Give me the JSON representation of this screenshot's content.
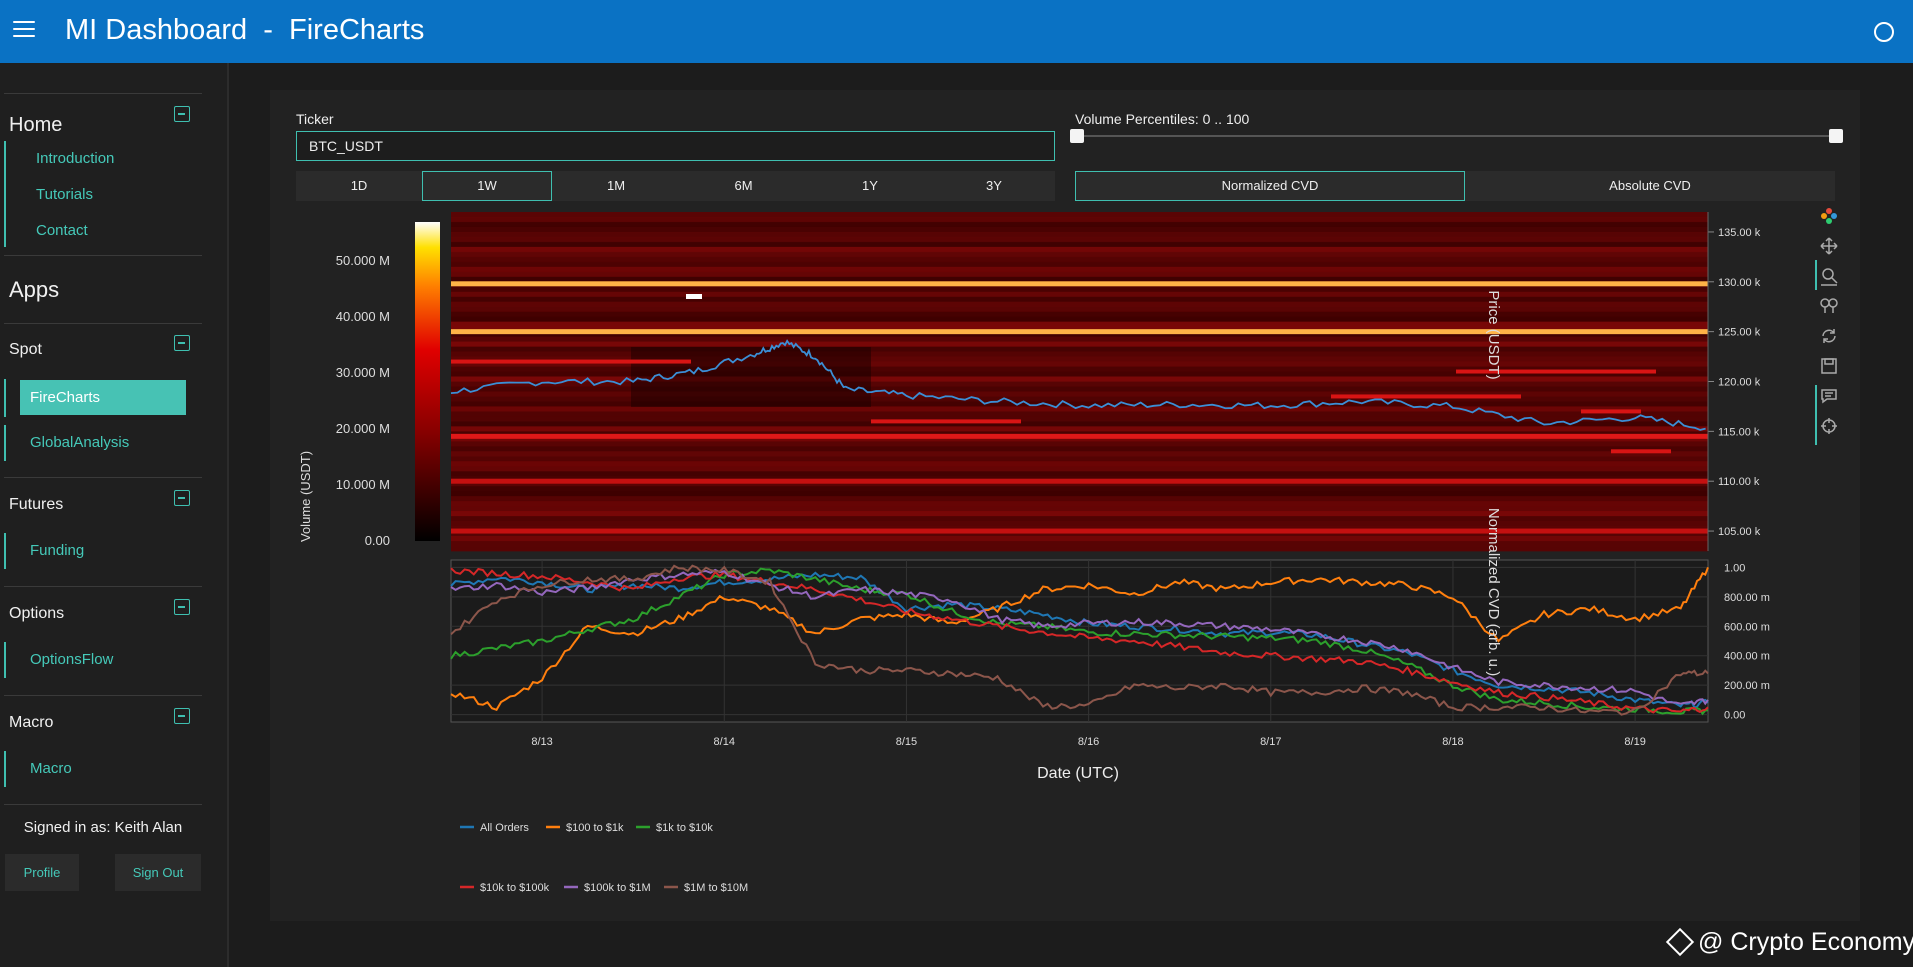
{
  "header": {
    "title": "MI Dashboard  -  FireCharts",
    "menu_icon": "hamburger-menu-icon",
    "status_icon": "circle-status-icon",
    "background": "#0a72c4"
  },
  "sidebar": {
    "home": {
      "title": "Home",
      "items": [
        "Introduction",
        "Tutorials",
        "Contact"
      ]
    },
    "apps_title": "Apps",
    "spot": {
      "title": "Spot",
      "items": [
        "FireCharts",
        "GlobalAnalysis"
      ],
      "active": "FireCharts"
    },
    "futures": {
      "title": "Futures",
      "items": [
        "Funding"
      ]
    },
    "options": {
      "title": "Options",
      "items": [
        "OptionsFlow"
      ]
    },
    "macro": {
      "title": "Macro",
      "items": [
        "Macro"
      ]
    },
    "signed_in": "Signed in as: Keith Alan",
    "profile_label": "Profile",
    "signout_label": "Sign Out",
    "accent": "#45c9b9"
  },
  "controls": {
    "ticker_label": "Ticker",
    "ticker_value": "BTC_USDT",
    "volume_label": "Volume Percentiles: 0 .. 100",
    "volume_range": [
      0,
      100
    ],
    "ranges": [
      "1D",
      "1W",
      "1M",
      "6M",
      "1Y",
      "3Y"
    ],
    "active_range": "1W",
    "cvd_modes": [
      "Normalized CVD",
      "Absolute CVD"
    ],
    "active_cvd_mode": "Normalized CVD"
  },
  "chart_data": [
    {
      "type": "heatmap",
      "colorscale": "hot",
      "colorbar_label": "Volume (USDT)",
      "colorbar_ticks": [
        "0.00",
        "10.000 M",
        "20.000 M",
        "30.000 M",
        "40.000 M",
        "50.000 M"
      ],
      "colorbar_range": [
        0,
        57000000
      ],
      "ylabel": "Price (USDT)",
      "ylim": [
        103000,
        137000
      ],
      "y_ticks": [
        "105.00 k",
        "110.00 k",
        "115.00 k",
        "120.00 k",
        "125.00 k",
        "130.00 k",
        "135.00 k"
      ],
      "x_range": [
        "2025-08-12T12:00",
        "2025-08-19T10:00"
      ],
      "bright_bands": [
        {
          "price": 129800,
          "volume": 45000000
        },
        {
          "price": 125000,
          "volume": 48000000
        },
        {
          "price": 114500,
          "volume": 26000000
        },
        {
          "price": 110000,
          "volume": 20000000
        },
        {
          "price": 105000,
          "volume": 15000000
        }
      ],
      "price_series": {
        "x": [
          "8/12 12:00",
          "8/13 00:00",
          "8/13 12:00",
          "8/13 20:00",
          "8/14 04:00",
          "8/14 08:00",
          "8/14 12:00",
          "8/14 16:00",
          "8/15 00:00",
          "8/15 12:00",
          "8/16 00:00",
          "8/16 12:00",
          "8/17 00:00",
          "8/17 12:00",
          "8/18 00:00",
          "8/18 12:00",
          "8/19 00:00",
          "8/19 10:00"
        ],
        "y": [
          119000,
          120000,
          120000,
          121000,
          122800,
          124000,
          122500,
          119200,
          118600,
          118000,
          117600,
          117700,
          117600,
          118000,
          117500,
          115800,
          116400,
          115300
        ]
      }
    },
    {
      "type": "line",
      "xlabel": "Date (UTC)",
      "ylabel": "Normalized CVD (arb. u.)",
      "ylim": [
        -0.05,
        1.05
      ],
      "y_ticks": [
        "0.00",
        "200.00 m",
        "400.00 m",
        "600.00 m",
        "800.00 m",
        "1.00"
      ],
      "x_ticks": [
        "8/13",
        "8/14",
        "8/15",
        "8/16",
        "8/17",
        "8/18",
        "8/19"
      ],
      "legend_position": "bottom",
      "x": [
        0,
        0.25,
        0.5,
        0.75,
        1,
        1.25,
        1.5,
        1.75,
        2,
        2.25,
        2.5,
        2.75,
        3,
        3.25,
        3.5,
        3.75,
        4,
        4.25,
        4.5,
        4.75,
        5,
        5.25,
        5.5,
        5.75,
        6,
        6.25,
        6.5,
        6.75,
        6.9
      ],
      "series": [
        {
          "name": "All Orders",
          "color": "#1f77b4",
          "values": [
            0.88,
            0.93,
            0.9,
            0.85,
            0.88,
            0.86,
            0.9,
            0.92,
            0.95,
            0.93,
            0.72,
            0.75,
            0.72,
            0.68,
            0.62,
            0.6,
            0.58,
            0.55,
            0.56,
            0.54,
            0.48,
            0.42,
            0.3,
            0.2,
            0.18,
            0.15,
            0.1,
            0.06,
            0.08
          ]
        },
        {
          "name": "$100 to $1k",
          "color": "#ff7f0e",
          "values": [
            0.15,
            0.05,
            0.25,
            0.6,
            0.55,
            0.65,
            0.8,
            0.72,
            0.55,
            0.65,
            0.68,
            0.62,
            0.72,
            0.85,
            0.88,
            0.82,
            0.9,
            0.85,
            0.9,
            0.92,
            0.9,
            0.88,
            0.8,
            0.5,
            0.68,
            0.72,
            0.65,
            0.72,
            1.0
          ]
        },
        {
          "name": "$1k to $10k",
          "color": "#2ca02c",
          "values": [
            0.4,
            0.45,
            0.5,
            0.58,
            0.65,
            0.8,
            0.95,
            0.98,
            0.92,
            0.85,
            0.82,
            0.7,
            0.62,
            0.6,
            0.56,
            0.55,
            0.54,
            0.53,
            0.52,
            0.5,
            0.44,
            0.34,
            0.2,
            0.1,
            0.08,
            0.05,
            0.04,
            0.02,
            0.03
          ]
        },
        {
          "name": "$10k to $100k",
          "color": "#d62728",
          "values": [
            0.98,
            0.96,
            0.94,
            0.9,
            0.85,
            0.93,
            0.95,
            0.9,
            0.85,
            0.78,
            0.7,
            0.65,
            0.6,
            0.56,
            0.52,
            0.5,
            0.46,
            0.42,
            0.4,
            0.38,
            0.36,
            0.3,
            0.22,
            0.15,
            0.12,
            0.08,
            0.04,
            0.02,
            0.05
          ]
        },
        {
          "name": "$100k to $1M",
          "color": "#9467bd",
          "values": [
            0.85,
            0.88,
            0.83,
            0.86,
            0.92,
            0.95,
            0.97,
            0.88,
            0.8,
            0.85,
            0.82,
            0.78,
            0.65,
            0.6,
            0.62,
            0.63,
            0.62,
            0.6,
            0.58,
            0.54,
            0.5,
            0.44,
            0.32,
            0.22,
            0.2,
            0.18,
            0.16,
            0.06,
            0.1
          ]
        },
        {
          "name": "$1M to $10M",
          "color": "#8c564b",
          "values": [
            0.55,
            0.78,
            0.88,
            0.92,
            0.92,
            1.0,
            0.98,
            0.9,
            0.35,
            0.3,
            0.3,
            0.28,
            0.25,
            0.06,
            0.06,
            0.2,
            0.18,
            0.2,
            0.15,
            0.15,
            0.18,
            0.15,
            0.05,
            0.05,
            0.05,
            0.02,
            0.02,
            0.28,
            0.28
          ]
        }
      ]
    }
  ],
  "modebar_icons": [
    "plotly-logo-icon",
    "pan-icon",
    "zoom-icon",
    "zoom-in-out-icon",
    "reset-icon",
    "download-icon",
    "comment-icon",
    "crosshair-icon"
  ],
  "watermark": "@ Crypto Economy"
}
